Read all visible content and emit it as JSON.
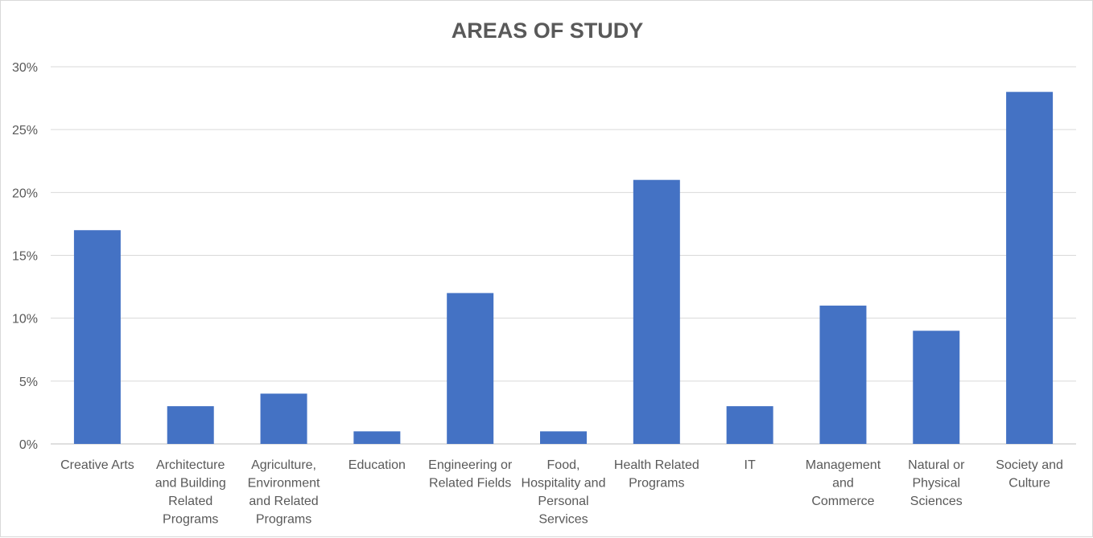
{
  "chart_data": {
    "type": "bar",
    "title": "AREAS OF STUDY",
    "categories": [
      [
        "Creative Arts"
      ],
      [
        "Architecture",
        "and Building",
        "Related",
        "Programs"
      ],
      [
        "Agriculture,",
        "Environment",
        "and Related",
        "Programs"
      ],
      [
        "Education"
      ],
      [
        "Engineering or",
        "Related Fields"
      ],
      [
        "Food,",
        "Hospitality and",
        "Personal",
        "Services"
      ],
      [
        "Health Related",
        "Programs"
      ],
      [
        "IT"
      ],
      [
        "Management",
        "and",
        "Commerce"
      ],
      [
        "Natural or",
        "Physical",
        "Sciences"
      ],
      [
        "Society and",
        "Culture"
      ]
    ],
    "values": [
      17,
      3,
      4,
      1,
      12,
      1,
      21,
      3,
      11,
      9,
      28
    ],
    "y_ticks": [
      "0%",
      "5%",
      "10%",
      "15%",
      "20%",
      "25%",
      "30%"
    ],
    "ylim": [
      0,
      30
    ],
    "grid": true,
    "legend": "none",
    "bar_color": "#4472c4"
  }
}
